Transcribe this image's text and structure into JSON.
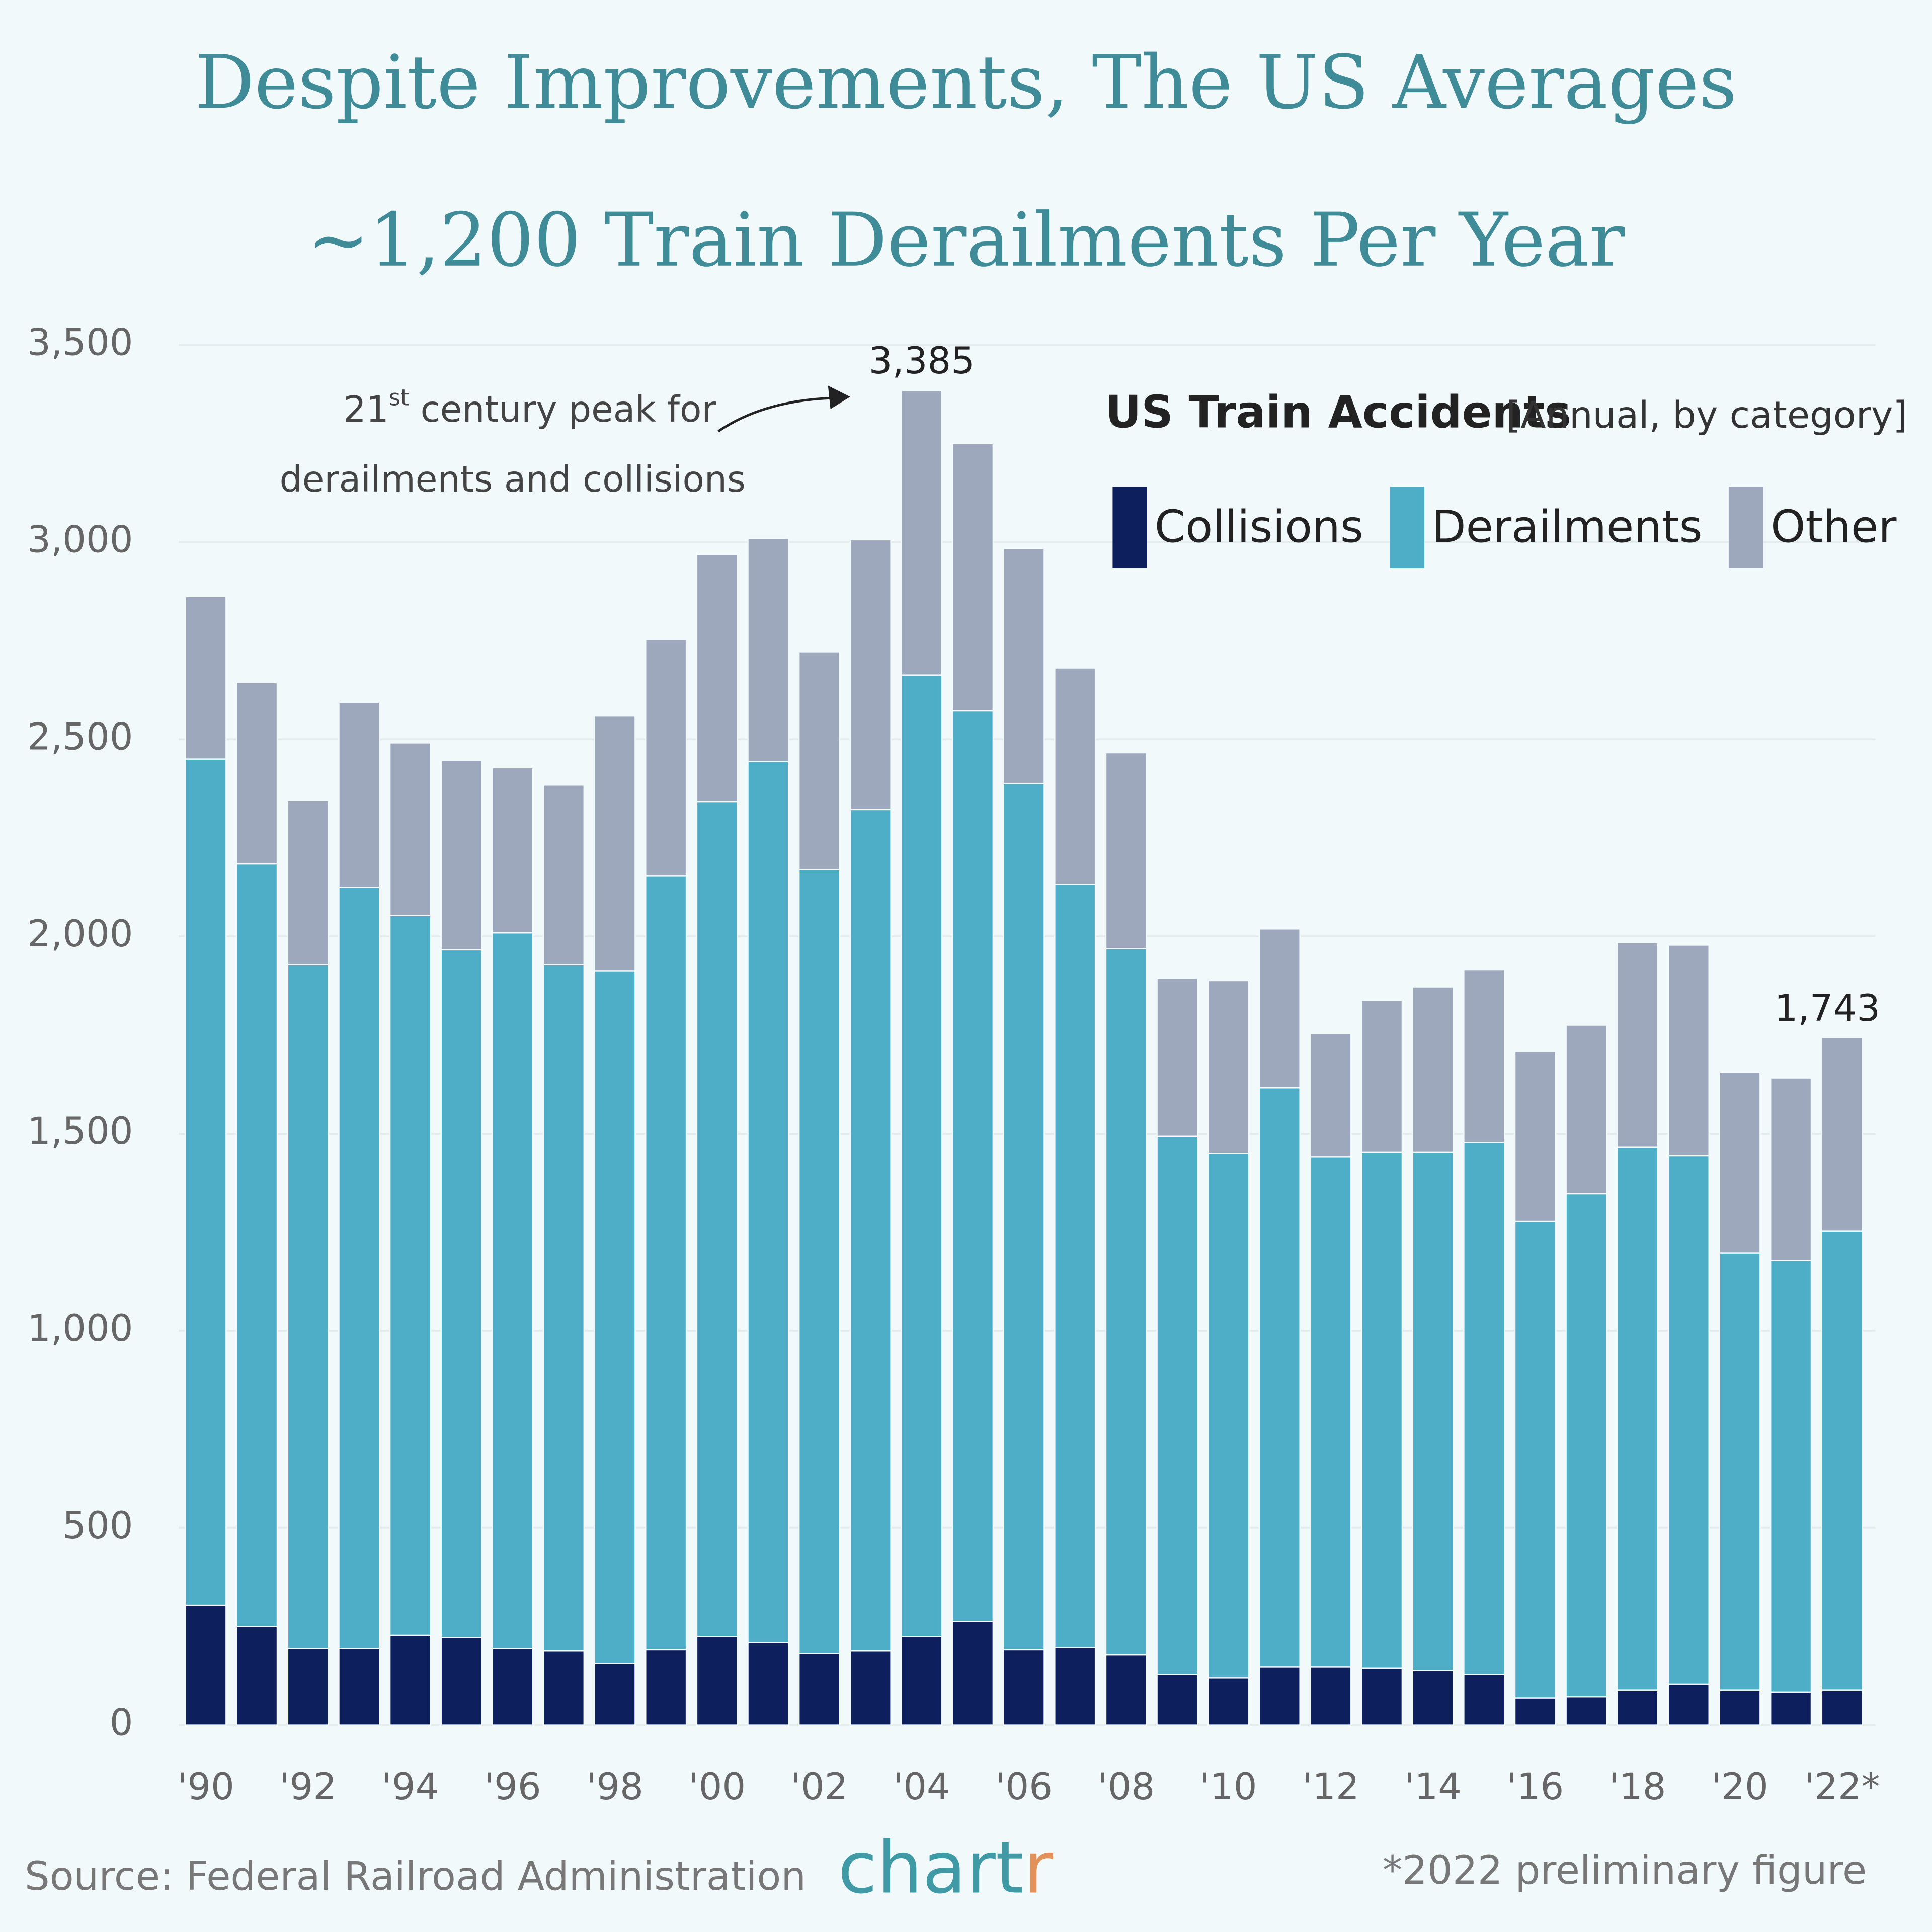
{
  "chart_data": {
    "type": "stacked_bar",
    "title_lines": [
      "Despite Improvements, The US Averages",
      "~1,200 Train Derailments Per Year"
    ],
    "categories": [
      "'90",
      null,
      "'92",
      null,
      "'94",
      null,
      "'96",
      null,
      "'98",
      null,
      "'00",
      null,
      "'02",
      null,
      "'04",
      null,
      "'06",
      null,
      "'08",
      null,
      "'10",
      null,
      "'12",
      null,
      "'14",
      null,
      "'16",
      null,
      "'18",
      null,
      "'20",
      null,
      "'22*"
    ],
    "series": [
      {
        "name": "Collisions",
        "color": "#0d1f5c",
        "values": [
          303,
          250,
          194,
          194,
          228,
          222,
          194,
          188,
          156,
          191,
          225,
          209,
          181,
          188,
          225,
          263,
          191,
          197,
          178,
          128,
          119,
          147,
          147,
          144,
          138,
          128,
          69,
          72,
          88,
          103,
          88,
          84,
          88
        ]
      },
      {
        "name": "Derailments",
        "color": "#4eaec8",
        "values": [
          2147,
          1934,
          1734,
          1931,
          1825,
          1744,
          1815,
          1740,
          1757,
          1962,
          2116,
          2235,
          1988,
          2134,
          2438,
          2309,
          2197,
          1934,
          1791,
          1366,
          1331,
          1469,
          1294,
          1309,
          1315,
          1350,
          1209,
          1275,
          1378,
          1341,
          1109,
          1094,
          1165
        ]
      },
      {
        "name": "Other",
        "color": "#9ea8bd",
        "values": [
          412,
          460,
          416,
          469,
          438,
          481,
          419,
          456,
          646,
          600,
          628,
          565,
          553,
          684,
          722,
          678,
          596,
          550,
          497,
          400,
          438,
          403,
          312,
          385,
          419,
          438,
          431,
          428,
          518,
          534,
          459,
          463,
          490
        ]
      }
    ],
    "total_labels": [
      {
        "index": 14,
        "value": 3385,
        "label": "3,385"
      },
      {
        "index": 32,
        "value": 1743,
        "label": "1,743"
      }
    ],
    "annotation": {
      "number": "21",
      "suffix": "st",
      "line1": " century peak for",
      "line2": "derailments and collisions"
    },
    "legend_title": "US Train Accidents",
    "legend_subtitle": "[Annual, by category]",
    "legend_position": "top-right",
    "ylim": [
      0,
      3500
    ],
    "yticks": [
      0,
      500,
      {
        "value": 1000,
        "label": "1,000"
      },
      {
        "value": 1500,
        "label": "1,500"
      },
      {
        "value": 2000,
        "label": "2,000"
      },
      {
        "value": 2500,
        "label": "2,500"
      },
      {
        "value": 3000,
        "label": "3,000"
      },
      {
        "value": 3500,
        "label": "3,500"
      }
    ],
    "grid": true,
    "source": "Source: Federal Railroad Administration",
    "logo_main": "chart",
    "logo_end": "r",
    "footnote": "*2022 preliminary figure"
  }
}
